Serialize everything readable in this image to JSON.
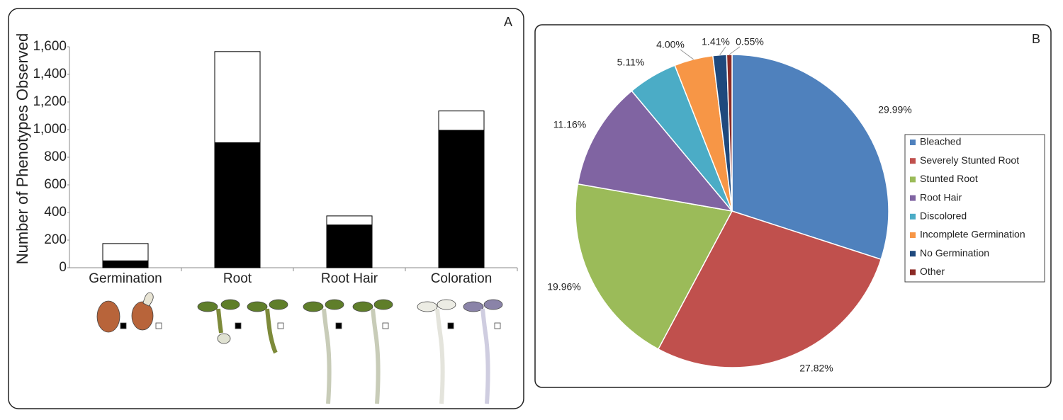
{
  "chart_data": [
    {
      "type": "stacked-bar",
      "panel_label": "A",
      "y_label": "Number of Phenotypes Observed",
      "categories": [
        "Germination",
        "Root",
        "Root Hair",
        "Coloration"
      ],
      "series": [
        {
          "color": "#000000",
          "values": [
            50,
            905,
            310,
            995
          ]
        },
        {
          "color": "#ffffff",
          "values": [
            125,
            660,
            65,
            140
          ]
        }
      ],
      "ylim": [
        0,
        1600
      ],
      "yticks": [
        0,
        200,
        400,
        600,
        800,
        {
          "value": 1000,
          "label": "1,000"
        },
        {
          "value": 1200,
          "label": "1,200"
        },
        {
          "value": 1400,
          "label": "1,400"
        },
        {
          "value": 1600,
          "label": "1,600"
        }
      ]
    },
    {
      "type": "pie",
      "panel_label": "B",
      "categories": [
        "Bleached",
        "Severely Stunted Root",
        "Stunted Root",
        "Root Hair",
        "Discolored",
        "Incomplete Germination",
        "No Germination",
        "Other"
      ],
      "values": [
        29.99,
        27.82,
        19.96,
        11.16,
        5.11,
        4.0,
        1.41,
        0.55
      ],
      "value_labels": [
        "29.99%",
        "27.82%",
        "19.96%",
        "11.16%",
        "5.11%",
        "4.00%",
        "1.41%",
        "0.55%"
      ],
      "colors": [
        "#4f81bd",
        "#c0504d",
        "#9bbb59",
        "#8064a2",
        "#4bacc6",
        "#f79646",
        "#1f497d",
        "#8b2a25"
      ]
    }
  ]
}
